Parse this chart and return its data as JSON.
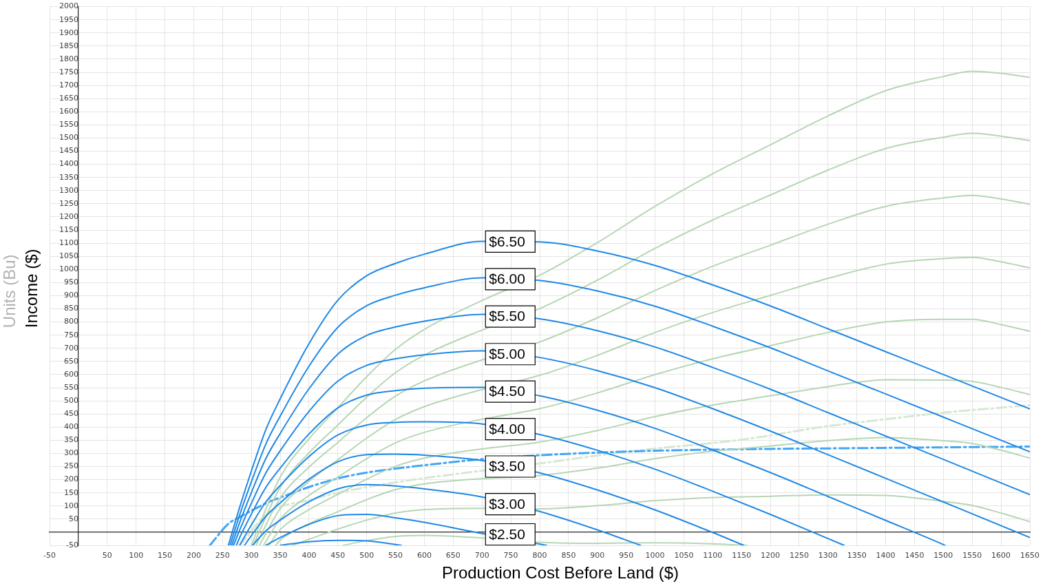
{
  "chart_data": {
    "type": "line",
    "xlabel": "Production Cost Before Land ($)",
    "ylabel": "Income ($)",
    "y2label": "Units (Bu)",
    "xlim": [
      -50,
      1650
    ],
    "ylim": [
      -50,
      2000
    ],
    "xticks": [
      -50,
      {
        "value": 0,
        "label": null
      },
      50,
      100,
      150,
      200,
      250,
      300,
      350,
      400,
      450,
      500,
      550,
      600,
      650,
      700,
      750,
      800,
      850,
      900,
      950,
      1000,
      1050,
      1100,
      1150,
      1200,
      1250,
      1300,
      1350,
      1400,
      1450,
      1500,
      1550,
      1600,
      1650
    ],
    "yticks": [
      -50,
      {
        "value": 0,
        "label": null
      },
      50,
      100,
      150,
      200,
      250,
      300,
      350,
      400,
      450,
      500,
      550,
      600,
      650,
      700,
      750,
      800,
      850,
      900,
      950,
      1000,
      1050,
      1100,
      1150,
      1200,
      1250,
      1300,
      1350,
      1400,
      1450,
      1500,
      1550,
      1600,
      1650,
      1700,
      1750,
      1800,
      1850,
      1900,
      1950,
      2000
    ],
    "grid": true,
    "marker": "none",
    "line_style": "solid",
    "series": [
      {
        "name": "$6.50",
        "color": "#1e88e5",
        "x": [
          260,
          280,
          300,
          325,
          350,
          400,
          450,
          500,
          550,
          600,
          700,
          800,
          900,
          1000,
          1100,
          1200,
          1300,
          1400,
          1500,
          1650
        ],
        "values": [
          -50,
          97,
          233,
          390,
          508,
          718,
          883,
          976,
          1023,
          1058,
          1107,
          1105,
          1070,
          1015,
          941,
          861,
          774,
          687,
          600,
          469
        ]
      },
      {
        "name": "$6.00",
        "color": "#1e88e5",
        "x": [
          263,
          280,
          300,
          325,
          350,
          400,
          450,
          500,
          550,
          600,
          700,
          800,
          900,
          1000,
          1100,
          1200,
          1300,
          1400,
          1500,
          1650
        ],
        "values": [
          -50,
          68,
          192,
          335,
          442,
          632,
          780,
          862,
          902,
          930,
          968,
          958,
          918,
          860,
          784,
          702,
          614,
          526,
          438,
          306
        ]
      },
      {
        "name": "$5.50",
        "color": "#1e88e5",
        "x": [
          266,
          280,
          300,
          325,
          350,
          400,
          450,
          500,
          550,
          600,
          700,
          800,
          900,
          1000,
          1100,
          1200,
          1300,
          1400,
          1500,
          1650
        ],
        "values": [
          -50,
          39,
          151,
          280,
          376,
          546,
          678,
          749,
          781,
          803,
          829,
          812,
          767,
          705,
          627,
          544,
          455,
          366,
          277,
          143
        ]
      },
      {
        "name": "$5.00",
        "color": "#1e88e5",
        "x": [
          269,
          280,
          300,
          325,
          350,
          400,
          450,
          500,
          550,
          600,
          700,
          800,
          900,
          1000,
          1100,
          1200,
          1300,
          1400,
          1500,
          1650
        ],
        "values": [
          -50,
          10,
          110,
          225,
          310,
          460,
          575,
          635,
          660,
          675,
          690,
          665,
          615,
          550,
          470,
          385,
          295,
          205,
          115,
          -20
        ]
      },
      {
        "name": "$4.50",
        "color": "#1e88e5",
        "x": [
          274,
          280,
          300,
          325,
          350,
          400,
          450,
          500,
          550,
          600,
          700,
          800,
          900,
          1000,
          1100,
          1200,
          1300,
          1400,
          1500,
          1503
        ],
        "values": [
          -50,
          -19,
          69,
          170,
          244,
          374,
          473,
          522,
          539,
          548,
          551,
          519,
          464,
          395,
          313,
          227,
          136,
          45,
          -47,
          -50
        ]
      },
      {
        "name": "$4.00",
        "color": "#1e88e5",
        "x": [
          280,
          300,
          325,
          350,
          400,
          450,
          500,
          550,
          600,
          700,
          800,
          900,
          1000,
          1100,
          1200,
          1300,
          1328
        ],
        "values": [
          -48,
          28,
          115,
          178,
          288,
          370,
          408,
          418,
          420,
          412,
          372,
          312,
          240,
          156,
          68,
          -24,
          -50
        ]
      },
      {
        "name": "$3.50",
        "color": "#1e88e5",
        "x": [
          288,
          300,
          325,
          350,
          400,
          450,
          500,
          550,
          600,
          700,
          800,
          900,
          1000,
          1100,
          1154
        ],
        "values": [
          -50,
          -13,
          60,
          112,
          202,
          268,
          295,
          297,
          293,
          273,
          226,
          161,
          85,
          -1,
          -50
        ]
      },
      {
        "name": "$3.00",
        "color": "#1e88e5",
        "x": [
          302,
          325,
          350,
          400,
          450,
          500,
          550,
          600,
          700,
          800,
          900,
          975
        ],
        "values": [
          -50,
          5,
          46,
          116,
          165,
          181,
          176,
          165,
          134,
          79,
          9,
          -50
        ]
      },
      {
        "name": "$2.50",
        "color": "#1e88e5",
        "x": [
          325,
          350,
          400,
          450,
          500,
          550,
          600,
          700,
          812
        ],
        "values": [
          -50,
          -20,
          30,
          63,
          68,
          55,
          38,
          -5,
          -50
        ]
      },
      {
        "color": "#1e88e5",
        "x": [
          350,
          400,
          450,
          500,
          560
        ],
        "values": [
          -50,
          -36,
          -31,
          -33,
          -50
        ]
      },
      {
        "color": "#b5d6b2",
        "x": [
          300,
          350,
          400,
          450,
          500,
          550,
          600,
          700,
          800,
          900,
          1000,
          1100,
          1200,
          1300,
          1400,
          1500,
          1550,
          1600,
          1650
        ],
        "values": [
          -48,
          210,
          356,
          474,
          592,
          696,
          772,
          882,
          978,
          1102,
          1240,
          1364,
          1474,
          1584,
          1680,
          1734,
          1754,
          1746,
          1731
        ]
      },
      {
        "color": "#b5d6b2",
        "x": [
          303,
          350,
          400,
          450,
          500,
          550,
          600,
          700,
          800,
          900,
          1000,
          1100,
          1200,
          1300,
          1400,
          1500,
          1550,
          1600,
          1650
        ],
        "values": [
          -50,
          170,
          302,
          408,
          514,
          607,
          674,
          769,
          851,
          959,
          1080,
          1188,
          1283,
          1378,
          1460,
          1503,
          1518,
          1507,
          1490
        ]
      },
      {
        "color": "#b5d6b2",
        "x": [
          308,
          350,
          400,
          450,
          500,
          550,
          600,
          700,
          800,
          900,
          1000,
          1100,
          1200,
          1300,
          1400,
          1500,
          1550,
          1600,
          1650
        ],
        "values": [
          -50,
          130,
          248,
          342,
          436,
          518,
          576,
          656,
          724,
          816,
          920,
          1012,
          1092,
          1172,
          1240,
          1272,
          1282,
          1268,
          1248
        ]
      },
      {
        "color": "#b5d6b2",
        "x": [
          314,
          350,
          400,
          450,
          500,
          550,
          600,
          700,
          800,
          900,
          1000,
          1100,
          1200,
          1300,
          1400,
          1500,
          1550,
          1600,
          1650
        ],
        "values": [
          -50,
          90,
          194,
          276,
          358,
          429,
          478,
          543,
          597,
          673,
          760,
          836,
          901,
          966,
          1020,
          1041,
          1046,
          1029,
          1006
        ]
      },
      {
        "color": "#b5d6b2",
        "x": [
          321,
          350,
          400,
          450,
          500,
          550,
          600,
          700,
          800,
          900,
          1000,
          1100,
          1200,
          1300,
          1400,
          1500,
          1550,
          1600,
          1650
        ],
        "values": [
          -50,
          50,
          140,
          210,
          280,
          340,
          380,
          430,
          470,
          530,
          600,
          660,
          710,
          760,
          800,
          810,
          810,
          790,
          765
        ]
      },
      {
        "color": "#b5d6b2",
        "x": [
          330,
          350,
          400,
          450,
          500,
          550,
          600,
          700,
          800,
          900,
          1000,
          1100,
          1200,
          1300,
          1400,
          1500,
          1550,
          1600,
          1650
        ],
        "values": [
          -50,
          10,
          86,
          144,
          202,
          251,
          282,
          317,
          343,
          387,
          440,
          484,
          519,
          554,
          580,
          579,
          574,
          551,
          524
        ]
      },
      {
        "color": "#b5d6b2",
        "x": [
          342,
          350,
          400,
          450,
          500,
          550,
          600,
          700,
          800,
          900,
          1000,
          1100,
          1200,
          1300,
          1400,
          1500,
          1550,
          1600,
          1650
        ],
        "values": [
          -50,
          -30,
          32,
          78,
          124,
          162,
          184,
          204,
          216,
          244,
          280,
          308,
          328,
          348,
          360,
          348,
          338,
          312,
          282
        ]
      },
      {
        "color": "#b5d6b2",
        "x": [
          371,
          450,
          500,
          550,
          600,
          700,
          800,
          900,
          1000,
          1100,
          1200,
          1300,
          1400,
          1500,
          1550,
          1600,
          1650
        ],
        "values": [
          -50,
          12,
          46,
          73,
          86,
          91,
          89,
          101,
          120,
          132,
          137,
          142,
          140,
          117,
          102,
          73,
          40
        ]
      },
      {
        "color": "#b5d6b2",
        "x": [
          459,
          500,
          550,
          600,
          700,
          800,
          900,
          1000,
          1100,
          1160
        ],
        "values": [
          -50,
          -32,
          -16,
          -12,
          -22,
          -38,
          -42,
          -40,
          -44,
          -50
        ]
      },
      {
        "color": "#42a5f5",
        "line_style": "dashed",
        "x": [
          228,
          260,
          280,
          300,
          325,
          350,
          400,
          450,
          500,
          550,
          600,
          700,
          800,
          900,
          1000,
          1100,
          1200,
          1300,
          1400,
          1500,
          1650
        ],
        "values": [
          -50,
          32,
          58,
          82,
          110,
          132,
          172,
          205,
          227,
          242,
          255,
          278,
          293,
          303,
          310,
          314,
          317,
          319,
          321,
          323,
          326
        ]
      },
      {
        "color": "#d5e8d2",
        "line_style": "dashed",
        "x": [
          280,
          330,
          400,
          450,
          550,
          700,
          800,
          950,
          1000,
          1150,
          1300,
          1400,
          1500,
          1650
        ],
        "values": [
          -50,
          75,
          122,
          150,
          190,
          234,
          262,
          306,
          318,
          352,
          404,
          430,
          455,
          483
        ]
      }
    ]
  }
}
